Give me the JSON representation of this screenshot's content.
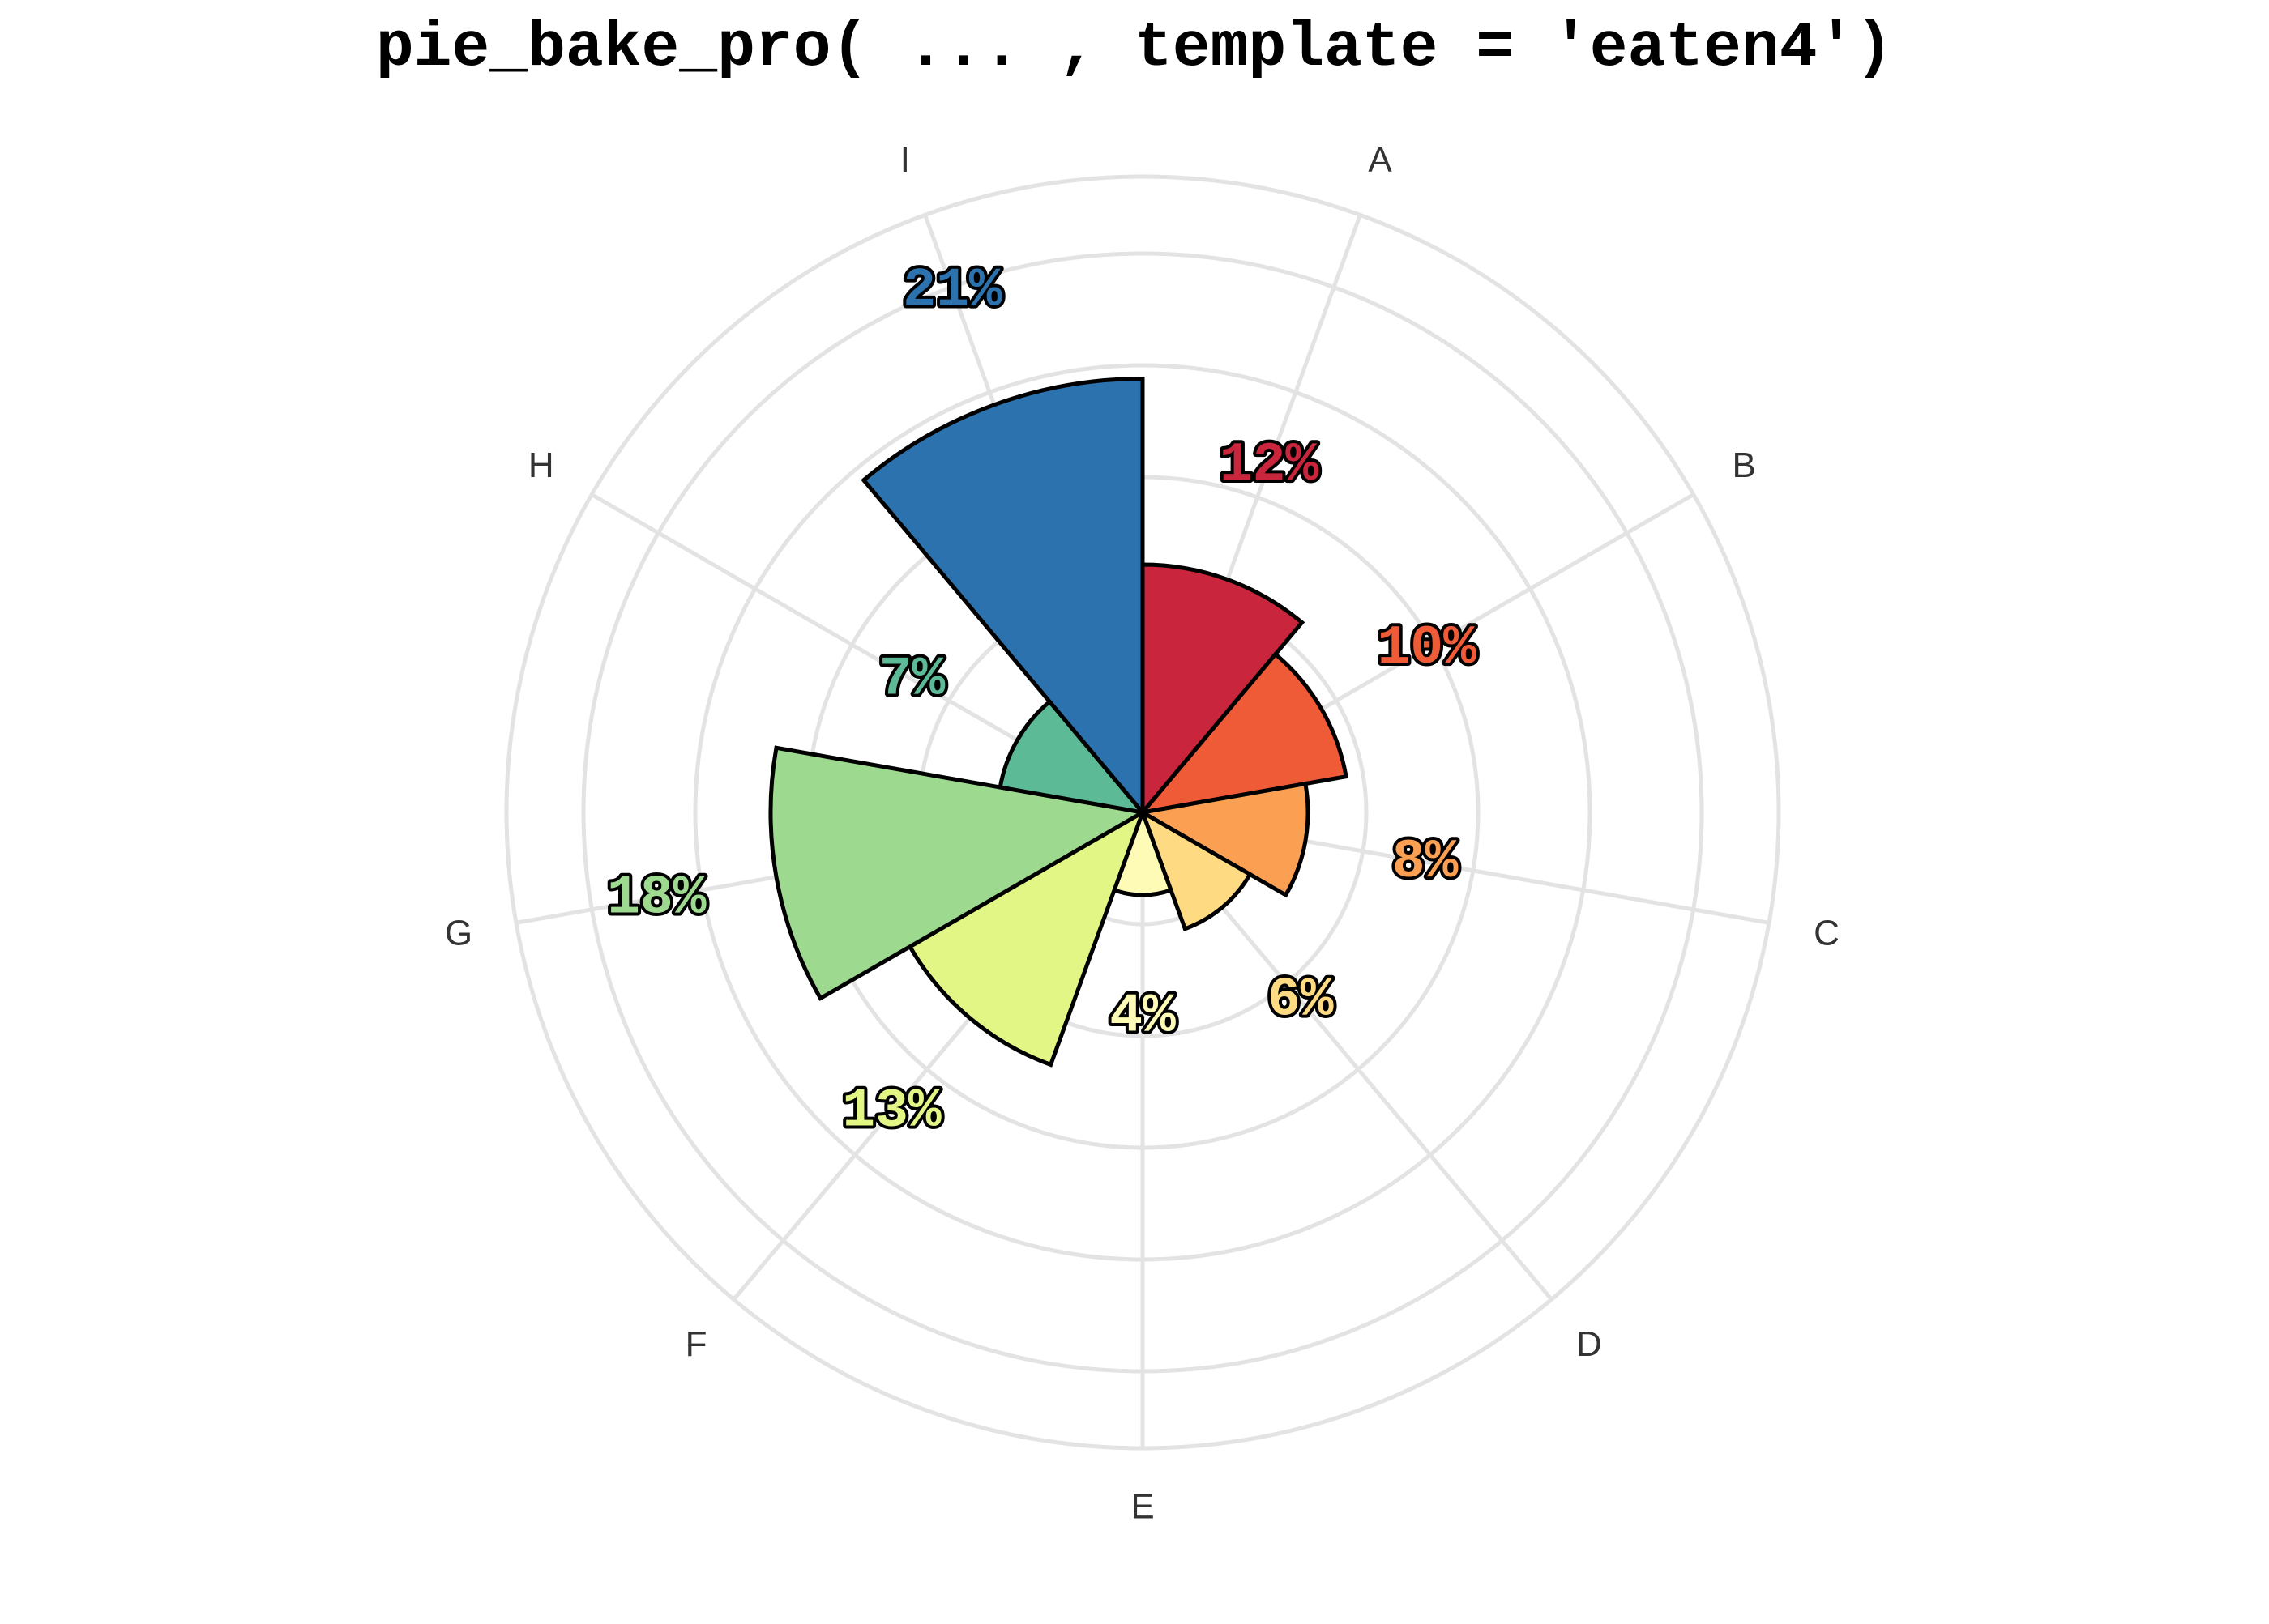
{
  "chart_data": {
    "type": "pie",
    "variant": "polar-area",
    "title": "pie_bake_pro( ... , template = 'eaten4')",
    "grid": true,
    "legend": "none",
    "categories": [
      "A",
      "B",
      "C",
      "D",
      "E",
      "F",
      "G",
      "H",
      "I"
    ],
    "slices": [
      {
        "category": "A",
        "value": 12,
        "label": "12%",
        "color": "#c9253c"
      },
      {
        "category": "B",
        "value": 10,
        "label": "10%",
        "color": "#ef5a37"
      },
      {
        "category": "C",
        "value": 8,
        "label": "8%",
        "color": "#fba052"
      },
      {
        "category": "D",
        "value": 6,
        "label": "6%",
        "color": "#fedb82"
      },
      {
        "category": "E",
        "value": 4,
        "label": "4%",
        "color": "#fefbb6"
      },
      {
        "category": "F",
        "value": 13,
        "label": "13%",
        "color": "#e2f685"
      },
      {
        "category": "G",
        "value": 18,
        "label": "18%",
        "color": "#9ed990"
      },
      {
        "category": "H",
        "value": 7,
        "label": "7%",
        "color": "#5cba97"
      },
      {
        "category": "I",
        "value": 21,
        "label": "21%",
        "color": "#2b72ae"
      }
    ]
  }
}
